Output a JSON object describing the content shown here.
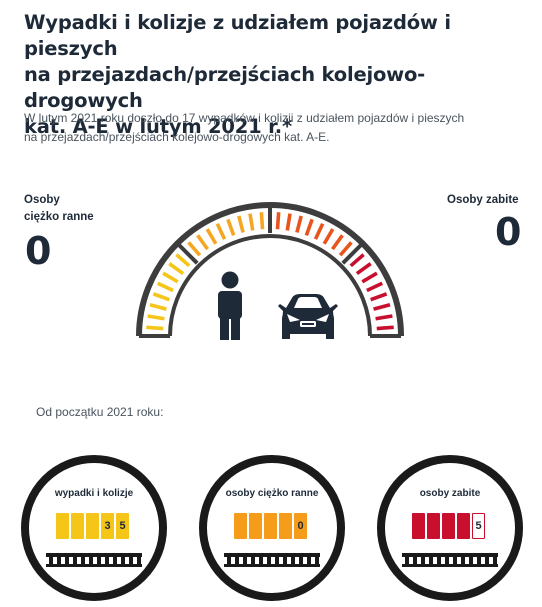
{
  "header": {
    "title_line1": "Wypadki i kolizje z udziałem pojazdów i pieszych",
    "title_line2": "na przejazdach/przejściach kolejowo-drogowych",
    "title_line3": "kat. A-E w lutym 2021 r.*"
  },
  "lead": {
    "line1": "W lutym 2021 roku doszło do 17 wypadków i kolizji z udziałem pojazdów i pieszych",
    "line2": "na przejazdach/przejściach kolejowo-drogowych kat. A-E."
  },
  "stats": {
    "injured_label_1": "Osoby",
    "injured_label_2": "ciężko ranne",
    "injured_value": "0",
    "killed_label": "Osoby zabite",
    "killed_value": "0"
  },
  "gauge": {
    "icons": [
      "pedestrian-icon",
      "car-icon"
    ],
    "colors": [
      "#f5c518",
      "#f5a623",
      "#e8541c",
      "#c8102e"
    ],
    "frame_color": "#3d3d3d"
  },
  "since": {
    "label": "Od początku 2021 roku:"
  },
  "counters": [
    {
      "title": "wypadki i kolizje",
      "digits": [
        "",
        "",
        "",
        "3",
        "5"
      ],
      "color": "#f5c518"
    },
    {
      "title": "osoby ciężko ranne",
      "digits": [
        "",
        "",
        "",
        "",
        "0"
      ],
      "color": "#f59d1a"
    },
    {
      "title": "osoby zabite",
      "digits": [
        "",
        "",
        "",
        "",
        "5"
      ],
      "color": "#c8102e"
    }
  ]
}
